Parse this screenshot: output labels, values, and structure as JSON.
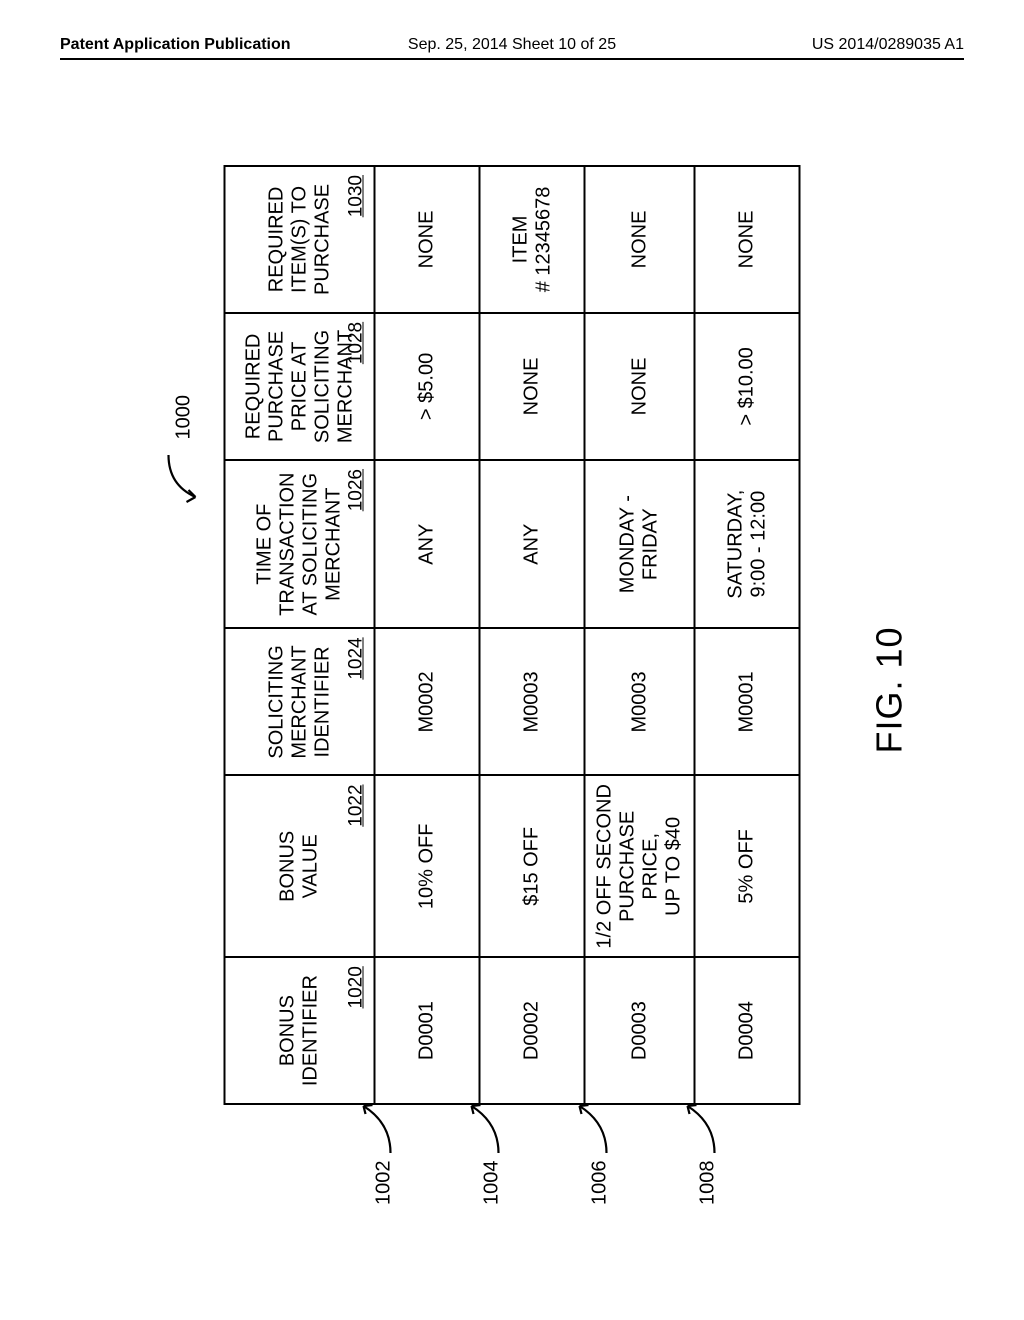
{
  "header": {
    "left": "Patent Application Publication",
    "center": "Sep. 25, 2014  Sheet 10 of 25",
    "right": "US 2014/0289035 A1"
  },
  "figure": {
    "overall_ref": "1000",
    "caption": "FIG. 10",
    "row_refs": [
      "1002",
      "1004",
      "1006",
      "1008"
    ],
    "columns": [
      {
        "label_lines": [
          "BONUS",
          "IDENTIFIER"
        ],
        "ref": "1020"
      },
      {
        "label_lines": [
          "BONUS",
          "VALUE"
        ],
        "ref": "1022"
      },
      {
        "label_lines": [
          "SOLICITING",
          "MERCHANT",
          "IDENTIFIER"
        ],
        "ref": "1024"
      },
      {
        "label_lines": [
          "TIME OF",
          "TRANSACTION",
          "AT SOLICITING",
          "MERCHANT"
        ],
        "ref": "1026"
      },
      {
        "label_lines": [
          "REQUIRED",
          "PURCHASE",
          "PRICE AT",
          "SOLICITING",
          "MERCHANT"
        ],
        "ref": "1028"
      },
      {
        "label_lines": [
          "REQUIRED",
          "ITEM(S) TO",
          "PURCHASE"
        ],
        "ref": "1030"
      }
    ],
    "rows": [
      [
        "D0001",
        "10% OFF",
        "M0002",
        "ANY",
        "> $5.00",
        "NONE"
      ],
      [
        "D0002",
        "$15 OFF",
        "M0003",
        "ANY",
        "NONE",
        "ITEM\n# 12345678"
      ],
      [
        "D0003",
        "1/2 OFF SECOND\nPURCHASE PRICE,\nUP TO $40",
        "M0003",
        "MONDAY -\nFRIDAY",
        "NONE",
        "NONE"
      ],
      [
        "D0004",
        "5% OFF",
        "M0001",
        "SATURDAY,\n9:00 - 12:00",
        "> $10.00",
        "NONE"
      ]
    ]
  },
  "style": {
    "border_color": "#000000",
    "bg_color": "#ffffff",
    "font": "Arial",
    "header_fontsize": 16,
    "cell_fontsize": 20,
    "caption_fontsize": 36,
    "row_ref_offsets": [
      132,
      240,
      348,
      456
    ]
  }
}
